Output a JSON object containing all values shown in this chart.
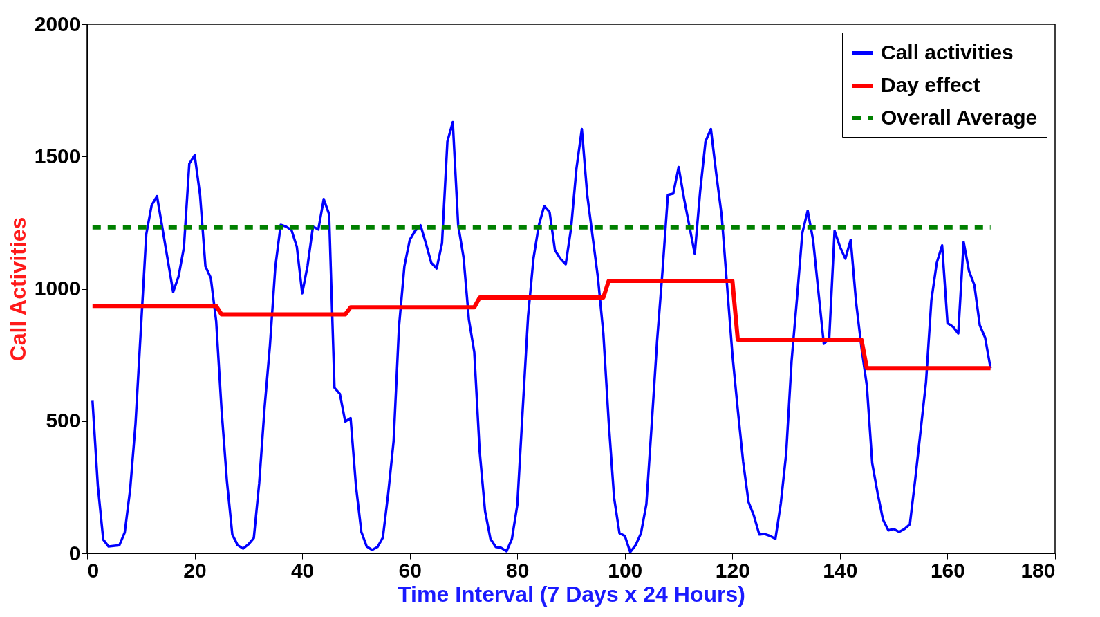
{
  "chart_data": {
    "type": "line",
    "xlabel": "Time Interval (7 Days x 24 Hours)",
    "ylabel": "Call Activities",
    "xlim": [
      0,
      180
    ],
    "xticks": [
      0,
      20,
      40,
      60,
      80,
      100,
      120,
      140,
      160,
      180
    ],
    "ylim": [
      0,
      2000
    ],
    "yticks": [
      0,
      500,
      1000,
      1500,
      2000
    ],
    "grid": false,
    "legend": "top right",
    "series": [
      {
        "name": "Call activities",
        "color": "#0000ff",
        "line_style": "solid",
        "x": [
          1,
          2,
          3,
          4,
          6,
          7,
          8,
          9,
          11,
          12,
          13,
          16,
          17,
          18,
          19,
          20,
          21,
          22,
          23,
          24,
          25,
          26,
          27,
          28,
          29,
          30,
          31,
          32,
          33,
          34,
          35,
          36,
          37,
          38,
          39,
          40,
          41,
          42,
          43,
          44,
          45,
          46,
          47,
          48,
          49,
          50,
          51,
          52,
          53,
          54,
          55,
          56,
          57,
          58,
          59,
          60,
          61,
          62,
          63,
          64,
          65,
          66,
          67,
          68,
          69,
          70,
          71,
          72,
          73,
          74,
          75,
          76,
          77,
          78,
          79,
          80,
          81,
          82,
          83,
          84,
          85,
          86,
          87,
          88,
          89,
          90,
          91,
          92,
          93,
          94,
          95,
          96,
          97,
          98,
          99,
          100,
          101,
          102,
          103,
          104,
          105,
          106,
          107,
          108,
          109,
          110,
          111,
          112,
          113,
          114,
          115,
          116,
          117,
          118,
          119,
          120,
          121,
          122,
          123,
          124,
          125,
          126,
          127,
          128,
          129,
          130,
          131,
          132,
          133,
          134,
          135,
          136,
          137,
          138,
          139,
          140,
          141,
          142,
          143,
          144,
          145,
          146,
          147,
          148,
          149,
          150,
          151,
          152,
          153,
          154,
          155,
          156,
          157,
          158,
          159,
          160,
          161,
          162,
          163,
          164,
          165,
          166,
          167,
          168
        ],
        "values": [
          577,
          254,
          52,
          26,
          31,
          79,
          241,
          490,
          1206,
          1316,
          1350,
          988,
          1046,
          1156,
          1473,
          1505,
          1355,
          1085,
          1041,
          878,
          543,
          273,
          71,
          31,
          18,
          34,
          58,
          265,
          550,
          786,
          1083,
          1242,
          1235,
          1222,
          1159,
          983,
          1088,
          1235,
          1224,
          1339,
          1282,
          626,
          603,
          498,
          511,
          254,
          81,
          26,
          13,
          24,
          60,
          228,
          425,
          857,
          1085,
          1185,
          1219,
          1240,
          1172,
          1098,
          1077,
          1172,
          1557,
          1630,
          1242,
          1119,
          883,
          760,
          385,
          160,
          55,
          24,
          21,
          8,
          55,
          183,
          543,
          896,
          1114,
          1240,
          1313,
          1290,
          1146,
          1114,
          1093,
          1229,
          1455,
          1604,
          1355,
          1198,
          1041,
          831,
          495,
          210,
          76,
          66,
          5,
          31,
          76,
          186,
          490,
          805,
          1067,
          1355,
          1360,
          1460,
          1342,
          1237,
          1132,
          1368,
          1557,
          1604,
          1434,
          1277,
          1014,
          752,
          543,
          346,
          194,
          142,
          71,
          73,
          66,
          55,
          189,
          377,
          726,
          962,
          1211,
          1295,
          1185,
          988,
          792,
          810,
          1219,
          1159,
          1114,
          1185,
          949,
          778,
          634,
          341,
          228,
          128,
          87,
          92,
          81,
          92,
          110,
          280,
          464,
          647,
          957,
          1098,
          1164,
          870,
          857,
          831,
          1177,
          1067,
          1014,
          862,
          815,
          700
        ]
      },
      {
        "name": "Day effect",
        "color": "#ff0000",
        "line_style": "solid",
        "x": [
          1,
          24,
          25,
          48,
          49,
          72,
          73,
          96,
          97,
          120,
          121,
          144,
          145,
          168
        ],
        "values": [
          935,
          935,
          903,
          903,
          930,
          930,
          967,
          967,
          1030,
          1030,
          808,
          808,
          700,
          700
        ]
      },
      {
        "name": "Overall Average",
        "color": "#008000",
        "line_style": "dashed",
        "x": [
          1,
          168
        ],
        "values": [
          1232,
          1232
        ]
      }
    ]
  }
}
